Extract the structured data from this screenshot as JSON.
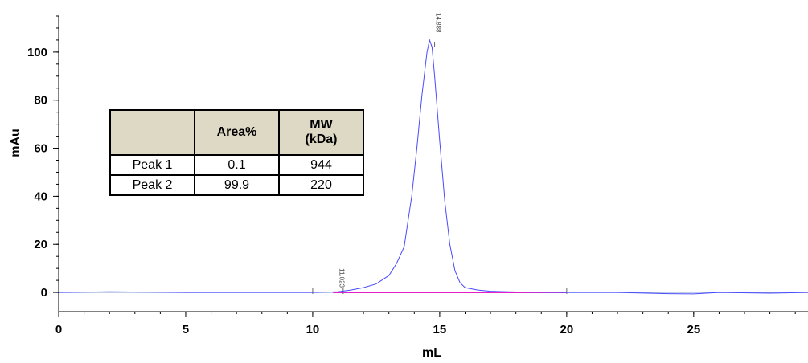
{
  "chart_data": {
    "type": "line",
    "xlabel": "mL",
    "ylabel": "mAu",
    "xlim": [
      0,
      29.5
    ],
    "ylim": [
      -8,
      115
    ],
    "x_ticks": [
      0,
      5,
      10,
      15,
      20,
      25
    ],
    "y_ticks": [
      0,
      20,
      40,
      60,
      80,
      100
    ],
    "grid": false,
    "series": [
      {
        "color": "#4a4aff",
        "x": [
          0,
          2,
          5,
          8,
          10,
          11,
          11.5,
          12,
          12.5,
          13,
          13.3,
          13.6,
          13.9,
          14.1,
          14.3,
          14.5,
          14.6,
          14.7,
          14.8,
          15.0,
          15.2,
          15.4,
          15.6,
          15.8,
          16.0,
          16.5,
          17,
          18,
          20,
          22,
          24,
          25,
          26,
          28,
          29.5
        ],
        "y": [
          0,
          0.3,
          0,
          0,
          0,
          0.3,
          1,
          2,
          3.5,
          7,
          12,
          19,
          40,
          60,
          82,
          100,
          105,
          102,
          90,
          63,
          38,
          20,
          9,
          4,
          2,
          1,
          0.5,
          0.2,
          0,
          0,
          -0.5,
          -0.6,
          0,
          -0.3,
          0
        ]
      }
    ],
    "baseline": {
      "color": "#e000c0",
      "x": [
        10.8,
        20
      ]
    },
    "peak_labels": [
      {
        "text": "11.023",
        "x": 11
      },
      {
        "text": "14.888",
        "x": 14.8
      }
    ],
    "table": {
      "headers": [
        "",
        "Area%",
        "MW (kDa)"
      ],
      "rows": [
        [
          "Peak 1",
          "0.1",
          "944"
        ],
        [
          "Peak 2",
          "99.9",
          "220"
        ]
      ]
    }
  }
}
